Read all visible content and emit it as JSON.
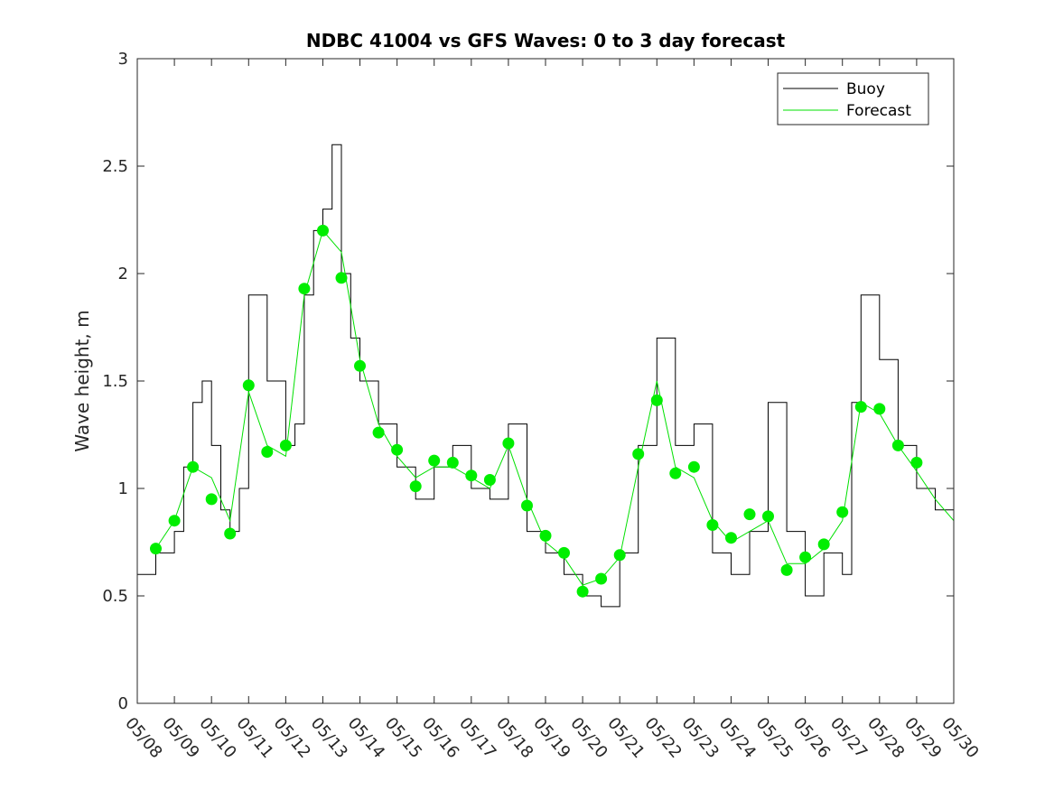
{
  "chart_data": {
    "type": "line",
    "title": "NDBC 41004 vs GFS Waves: 0 to 3 day forecast",
    "xlabel": "",
    "ylabel": "Wave height, m",
    "xlim": [
      "05/08",
      "05/30"
    ],
    "ylim": [
      0,
      3
    ],
    "x_tick_labels": [
      "05/08",
      "05/09",
      "05/10",
      "05/11",
      "05/12",
      "05/13",
      "05/14",
      "05/15",
      "05/16",
      "05/17",
      "05/18",
      "05/19",
      "05/20",
      "05/21",
      "05/22",
      "05/23",
      "05/24",
      "05/25",
      "05/26",
      "05/27",
      "05/28",
      "05/29",
      "05/30"
    ],
    "y_tick_labels": [
      "0",
      "0.5",
      "1",
      "1.5",
      "2",
      "2.5",
      "3"
    ],
    "y_ticks": [
      0,
      0.5,
      1,
      1.5,
      2,
      2.5,
      3
    ],
    "grid": false,
    "legend_position": "top-right",
    "colors": {
      "buoy": "#000000",
      "forecast": "#00e000",
      "markers": "#00ee00"
    },
    "series": [
      {
        "name": "Buoy",
        "kind": "observed",
        "x": [
          "05/08",
          "05/08 12:00",
          "05/09",
          "05/09 06:00",
          "05/09 12:00",
          "05/09 18:00",
          "05/10",
          "05/10 06:00",
          "05/10 12:00",
          "05/10 18:00",
          "05/11",
          "05/11 12:00",
          "05/12",
          "05/12 06:00",
          "05/12 12:00",
          "05/12 18:00",
          "05/13",
          "05/13 06:00",
          "05/13 12:00",
          "05/13 18:00",
          "05/14",
          "05/14 12:00",
          "05/15",
          "05/15 12:00",
          "05/16",
          "05/16 12:00",
          "05/17",
          "05/17 12:00",
          "05/18",
          "05/18 12:00",
          "05/19",
          "05/19 12:00",
          "05/20",
          "05/20 12:00",
          "05/21",
          "05/21 12:00",
          "05/22",
          "05/22 12:00",
          "05/23",
          "05/23 12:00",
          "05/24",
          "05/24 12:00",
          "05/25",
          "05/25 12:00",
          "05/26",
          "05/26 12:00",
          "05/27",
          "05/27 06:00",
          "05/27 12:00",
          "05/28",
          "05/28 12:00",
          "05/29",
          "05/29 12:00",
          "05/30"
        ],
        "y": [
          0.6,
          0.7,
          0.8,
          1.1,
          1.4,
          1.5,
          1.2,
          0.9,
          0.8,
          1.0,
          1.9,
          1.5,
          1.2,
          1.3,
          1.9,
          2.2,
          2.3,
          2.6,
          2.0,
          1.7,
          1.5,
          1.3,
          1.1,
          0.95,
          1.1,
          1.2,
          1.0,
          0.95,
          1.3,
          0.8,
          0.7,
          0.6,
          0.5,
          0.45,
          0.7,
          1.2,
          1.7,
          1.2,
          1.3,
          0.7,
          0.6,
          0.8,
          1.4,
          0.8,
          0.5,
          0.7,
          0.6,
          1.4,
          1.9,
          1.6,
          1.2,
          1.0,
          0.9,
          0.85
        ]
      },
      {
        "name": "Forecast",
        "kind": "forecast",
        "x": [
          "05/08 12:00",
          "05/09",
          "05/09 12:00",
          "05/10",
          "05/10 12:00",
          "05/11",
          "05/11 12:00",
          "05/12",
          "05/12 12:00",
          "05/13",
          "05/13 12:00",
          "05/14",
          "05/14 12:00",
          "05/15",
          "05/15 12:00",
          "05/16",
          "05/16 12:00",
          "05/17",
          "05/17 12:00",
          "05/18",
          "05/18 12:00",
          "05/19",
          "05/19 12:00",
          "05/20",
          "05/20 12:00",
          "05/21",
          "05/21 12:00",
          "05/22",
          "05/22 12:00",
          "05/23",
          "05/23 12:00",
          "05/24",
          "05/24 12:00",
          "05/25",
          "05/25 12:00",
          "05/26",
          "05/26 12:00",
          "05/27",
          "05/27 12:00",
          "05/28",
          "05/28 12:00",
          "05/29",
          "05/29 12:00",
          "05/30"
        ],
        "y": [
          0.72,
          0.85,
          1.1,
          1.05,
          0.85,
          1.45,
          1.2,
          1.15,
          1.9,
          2.2,
          2.1,
          1.6,
          1.3,
          1.15,
          1.05,
          1.1,
          1.1,
          1.05,
          1.0,
          1.2,
          0.95,
          0.75,
          0.68,
          0.55,
          0.58,
          0.68,
          1.1,
          1.5,
          1.1,
          1.05,
          0.85,
          0.75,
          0.8,
          0.85,
          0.65,
          0.65,
          0.72,
          0.85,
          1.4,
          1.35,
          1.2,
          1.08,
          0.95,
          0.85
        ]
      }
    ],
    "forecast_daily_markers": {
      "x": [
        "05/08 12:00",
        "05/09",
        "05/09 12:00",
        "05/10",
        "05/10 12:00",
        "05/11",
        "05/11 12:00",
        "05/12",
        "05/12 12:00",
        "05/13",
        "05/13 12:00",
        "05/14",
        "05/14 12:00",
        "05/15",
        "05/15 12:00",
        "05/16",
        "05/16 12:00",
        "05/17",
        "05/17 12:00",
        "05/18",
        "05/18 12:00",
        "05/19",
        "05/19 12:00",
        "05/20",
        "05/20 12:00",
        "05/21",
        "05/21 12:00",
        "05/22",
        "05/22 12:00",
        "05/23",
        "05/23 12:00",
        "05/24",
        "05/24 12:00",
        "05/25",
        "05/25 12:00",
        "05/26",
        "05/26 12:00",
        "05/27",
        "05/27 12:00",
        "05/28",
        "05/28 12:00",
        "05/29"
      ],
      "y": [
        0.72,
        0.85,
        1.1,
        0.95,
        0.79,
        1.48,
        1.17,
        1.2,
        1.93,
        2.2,
        1.98,
        1.57,
        1.26,
        1.18,
        1.01,
        1.13,
        1.12,
        1.06,
        1.04,
        1.21,
        0.92,
        0.78,
        0.7,
        0.52,
        0.58,
        0.69,
        1.16,
        1.41,
        1.07,
        1.1,
        0.83,
        0.77,
        0.88,
        0.87,
        0.62,
        0.68,
        0.74,
        0.89,
        1.38,
        1.37,
        1.2,
        1.12
      ]
    }
  }
}
